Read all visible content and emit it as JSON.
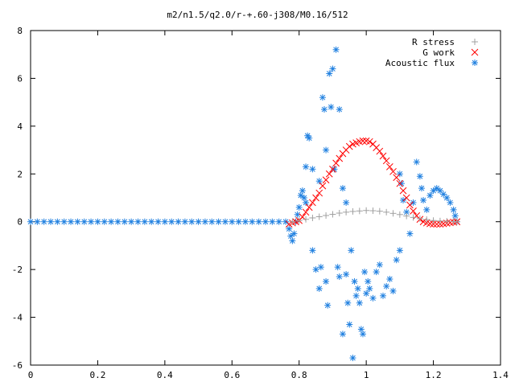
{
  "chart_data": {
    "type": "scatter",
    "title": "m2/n1.5/q2.0/r-+.60-j308/M0.16/512",
    "xlabel": "",
    "ylabel": "",
    "xlim": [
      0,
      1.4
    ],
    "ylim": [
      -6,
      8
    ],
    "x_ticks": [
      "0",
      "0.2",
      "0.4",
      "0.6",
      "0.8",
      "1",
      "1.2",
      "1.4"
    ],
    "y_ticks": [
      "-6",
      "-4",
      "-2",
      "0",
      "2",
      "4",
      "6",
      "8"
    ],
    "grid": false,
    "legend_position": "top-right",
    "series": [
      {
        "name": "R stress",
        "marker": "plus",
        "color": "#a0a0a0",
        "points": [
          [
            0.78,
            0.0
          ],
          [
            0.8,
            0.05
          ],
          [
            0.82,
            0.1
          ],
          [
            0.84,
            0.16
          ],
          [
            0.86,
            0.21
          ],
          [
            0.88,
            0.26
          ],
          [
            0.9,
            0.31
          ],
          [
            0.92,
            0.36
          ],
          [
            0.94,
            0.4
          ],
          [
            0.96,
            0.43
          ],
          [
            0.98,
            0.45
          ],
          [
            1.0,
            0.47
          ],
          [
            1.02,
            0.46
          ],
          [
            1.04,
            0.44
          ],
          [
            1.06,
            0.4
          ],
          [
            1.08,
            0.35
          ],
          [
            1.1,
            0.3
          ],
          [
            1.12,
            0.24
          ],
          [
            1.14,
            0.18
          ],
          [
            1.16,
            0.13
          ],
          [
            1.18,
            0.09
          ],
          [
            1.2,
            0.05
          ],
          [
            1.22,
            0.03
          ],
          [
            1.24,
            0.02
          ],
          [
            1.26,
            0.01
          ],
          [
            1.27,
            0.0
          ]
        ]
      },
      {
        "name": "G work",
        "marker": "cross",
        "color": "#ff0000",
        "points": [
          [
            0.77,
            -0.1
          ],
          [
            0.78,
            -0.05
          ],
          [
            0.79,
            0.0
          ],
          [
            0.8,
            0.05
          ],
          [
            0.81,
            0.2
          ],
          [
            0.82,
            0.4
          ],
          [
            0.83,
            0.6
          ],
          [
            0.84,
            0.8
          ],
          [
            0.85,
            1.0
          ],
          [
            0.86,
            1.2
          ],
          [
            0.87,
            1.5
          ],
          [
            0.88,
            1.75
          ],
          [
            0.89,
            2.0
          ],
          [
            0.9,
            2.2
          ],
          [
            0.91,
            2.45
          ],
          [
            0.92,
            2.65
          ],
          [
            0.93,
            2.85
          ],
          [
            0.94,
            3.0
          ],
          [
            0.95,
            3.15
          ],
          [
            0.96,
            3.25
          ],
          [
            0.97,
            3.3
          ],
          [
            0.98,
            3.35
          ],
          [
            0.99,
            3.38
          ],
          [
            1.0,
            3.38
          ],
          [
            1.01,
            3.35
          ],
          [
            1.02,
            3.25
          ],
          [
            1.03,
            3.1
          ],
          [
            1.04,
            2.95
          ],
          [
            1.05,
            2.75
          ],
          [
            1.06,
            2.55
          ],
          [
            1.07,
            2.3
          ],
          [
            1.08,
            2.1
          ],
          [
            1.09,
            1.85
          ],
          [
            1.1,
            1.6
          ],
          [
            1.11,
            1.3
          ],
          [
            1.12,
            1.0
          ],
          [
            1.13,
            0.7
          ],
          [
            1.14,
            0.45
          ],
          [
            1.15,
            0.25
          ],
          [
            1.16,
            0.1
          ],
          [
            1.17,
            0.0
          ],
          [
            1.18,
            -0.05
          ],
          [
            1.19,
            -0.08
          ],
          [
            1.2,
            -0.1
          ],
          [
            1.21,
            -0.1
          ],
          [
            1.22,
            -0.1
          ],
          [
            1.23,
            -0.08
          ],
          [
            1.24,
            -0.06
          ],
          [
            1.25,
            -0.04
          ],
          [
            1.26,
            -0.02
          ],
          [
            1.27,
            0.0
          ]
        ]
      },
      {
        "name": "Acoustic flux",
        "marker": "star",
        "color": "#2080e0",
        "points": [
          [
            0.0,
            0.0
          ],
          [
            0.02,
            0.0
          ],
          [
            0.04,
            0.0
          ],
          [
            0.06,
            0.0
          ],
          [
            0.08,
            0.0
          ],
          [
            0.1,
            0.0
          ],
          [
            0.12,
            0.0
          ],
          [
            0.14,
            0.0
          ],
          [
            0.16,
            0.0
          ],
          [
            0.18,
            0.0
          ],
          [
            0.2,
            0.0
          ],
          [
            0.22,
            0.0
          ],
          [
            0.24,
            0.0
          ],
          [
            0.26,
            0.0
          ],
          [
            0.28,
            0.0
          ],
          [
            0.3,
            0.0
          ],
          [
            0.32,
            0.0
          ],
          [
            0.34,
            0.0
          ],
          [
            0.36,
            0.0
          ],
          [
            0.38,
            0.0
          ],
          [
            0.4,
            0.0
          ],
          [
            0.42,
            0.0
          ],
          [
            0.44,
            0.0
          ],
          [
            0.46,
            0.0
          ],
          [
            0.48,
            0.0
          ],
          [
            0.5,
            0.0
          ],
          [
            0.52,
            0.0
          ],
          [
            0.54,
            0.0
          ],
          [
            0.56,
            0.0
          ],
          [
            0.58,
            0.0
          ],
          [
            0.6,
            0.0
          ],
          [
            0.62,
            0.0
          ],
          [
            0.64,
            0.0
          ],
          [
            0.66,
            0.0
          ],
          [
            0.68,
            0.0
          ],
          [
            0.7,
            0.0
          ],
          [
            0.72,
            0.0
          ],
          [
            0.74,
            0.0
          ],
          [
            0.76,
            0.0
          ],
          [
            0.77,
            -0.3
          ],
          [
            0.775,
            -0.6
          ],
          [
            0.78,
            -0.8
          ],
          [
            0.785,
            -0.5
          ],
          [
            0.79,
            0.0
          ],
          [
            0.795,
            0.3
          ],
          [
            0.8,
            0.6
          ],
          [
            0.805,
            1.1
          ],
          [
            0.81,
            1.3
          ],
          [
            0.815,
            1.0
          ],
          [
            0.82,
            0.8
          ],
          [
            0.82,
            2.3
          ],
          [
            0.825,
            3.6
          ],
          [
            0.83,
            3.5
          ],
          [
            0.84,
            2.2
          ],
          [
            0.84,
            -1.2
          ],
          [
            0.85,
            -2.0
          ],
          [
            0.86,
            1.7
          ],
          [
            0.86,
            -2.8
          ],
          [
            0.865,
            -1.9
          ],
          [
            0.87,
            5.2
          ],
          [
            0.875,
            4.7
          ],
          [
            0.88,
            3.0
          ],
          [
            0.88,
            -2.5
          ],
          [
            0.885,
            -3.5
          ],
          [
            0.89,
            6.2
          ],
          [
            0.895,
            4.8
          ],
          [
            0.9,
            6.4
          ],
          [
            0.905,
            2.2
          ],
          [
            0.91,
            7.2
          ],
          [
            0.915,
            -1.9
          ],
          [
            0.92,
            4.7
          ],
          [
            0.92,
            -2.3
          ],
          [
            0.93,
            1.4
          ],
          [
            0.93,
            -4.7
          ],
          [
            0.94,
            -2.2
          ],
          [
            0.94,
            0.8
          ],
          [
            0.945,
            -3.4
          ],
          [
            0.95,
            -4.3
          ],
          [
            0.955,
            -1.2
          ],
          [
            0.96,
            -5.7
          ],
          [
            0.965,
            -2.5
          ],
          [
            0.97,
            -3.1
          ],
          [
            0.975,
            -2.8
          ],
          [
            0.98,
            -3.4
          ],
          [
            0.985,
            -4.5
          ],
          [
            0.99,
            -4.7
          ],
          [
            0.995,
            -2.1
          ],
          [
            1.0,
            -3.0
          ],
          [
            1.005,
            -2.5
          ],
          [
            1.01,
            -2.8
          ],
          [
            1.02,
            -3.2
          ],
          [
            1.03,
            -2.1
          ],
          [
            1.04,
            -1.8
          ],
          [
            1.05,
            -3.1
          ],
          [
            1.06,
            -2.7
          ],
          [
            1.07,
            -2.4
          ],
          [
            1.08,
            -2.9
          ],
          [
            1.09,
            -1.6
          ],
          [
            1.1,
            -1.2
          ],
          [
            1.1,
            2.0
          ],
          [
            1.105,
            1.6
          ],
          [
            1.11,
            0.9
          ],
          [
            1.12,
            0.4
          ],
          [
            1.13,
            -0.5
          ],
          [
            1.14,
            0.8
          ],
          [
            1.15,
            2.5
          ],
          [
            1.16,
            1.9
          ],
          [
            1.165,
            1.4
          ],
          [
            1.17,
            0.9
          ],
          [
            1.18,
            0.5
          ],
          [
            1.19,
            1.1
          ],
          [
            1.2,
            1.3
          ],
          [
            1.21,
            1.4
          ],
          [
            1.22,
            1.3
          ],
          [
            1.23,
            1.15
          ],
          [
            1.24,
            1.0
          ],
          [
            1.25,
            0.8
          ],
          [
            1.26,
            0.5
          ],
          [
            1.265,
            0.25
          ],
          [
            1.27,
            0.0
          ]
        ]
      }
    ]
  }
}
